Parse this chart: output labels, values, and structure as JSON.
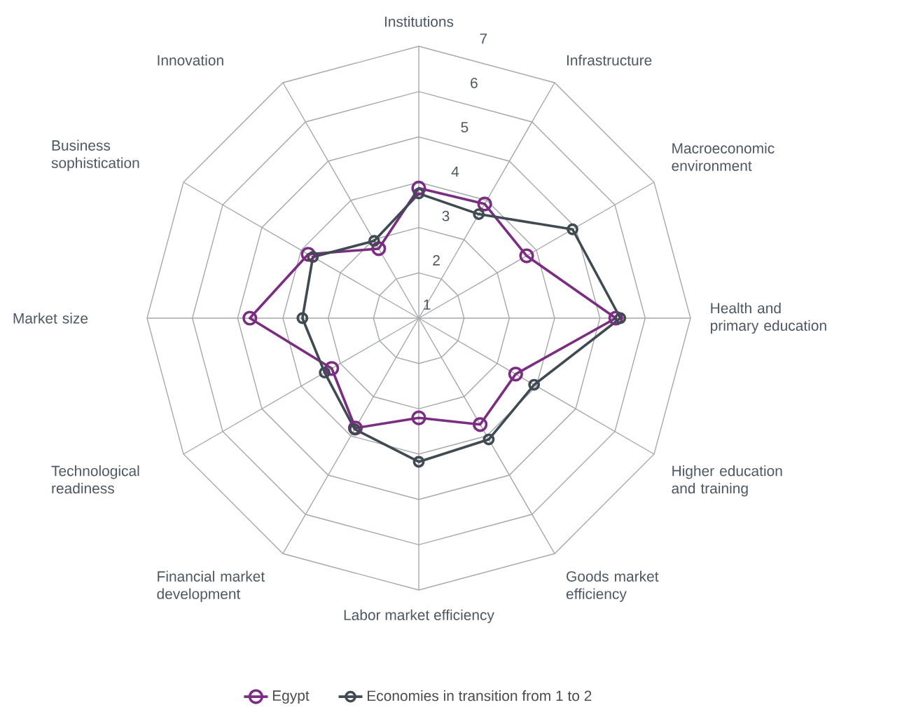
{
  "chart_data": {
    "type": "radar",
    "categories": [
      "Institutions",
      "Infrastructure",
      "Macroeconomic environment",
      "Health and primary education",
      "Higher education and training",
      "Goods market efficiency",
      "Labor market efficiency",
      "Financial market development",
      "Technological readiness",
      "Market size",
      "Business sophistication",
      "Innovation"
    ],
    "series": [
      {
        "name": "Egypt",
        "color": "#7b2d82",
        "values": [
          3.87,
          3.91,
          3.75,
          5.35,
          3.47,
          3.71,
          3.2,
          3.8,
          3.22,
          4.73,
          3.82,
          2.77
        ]
      },
      {
        "name": "Economies in transition from 1 to 2",
        "color": "#3f4a52",
        "values": [
          3.75,
          3.65,
          4.92,
          5.45,
          3.94,
          4.09,
          4.17,
          3.83,
          3.4,
          3.57,
          3.7,
          2.97
        ]
      }
    ],
    "ylim": [
      1,
      7
    ],
    "yticks": [
      1,
      2,
      3,
      4,
      5,
      6,
      7
    ],
    "grid": true,
    "legend": "bottom",
    "marker": "circle"
  }
}
